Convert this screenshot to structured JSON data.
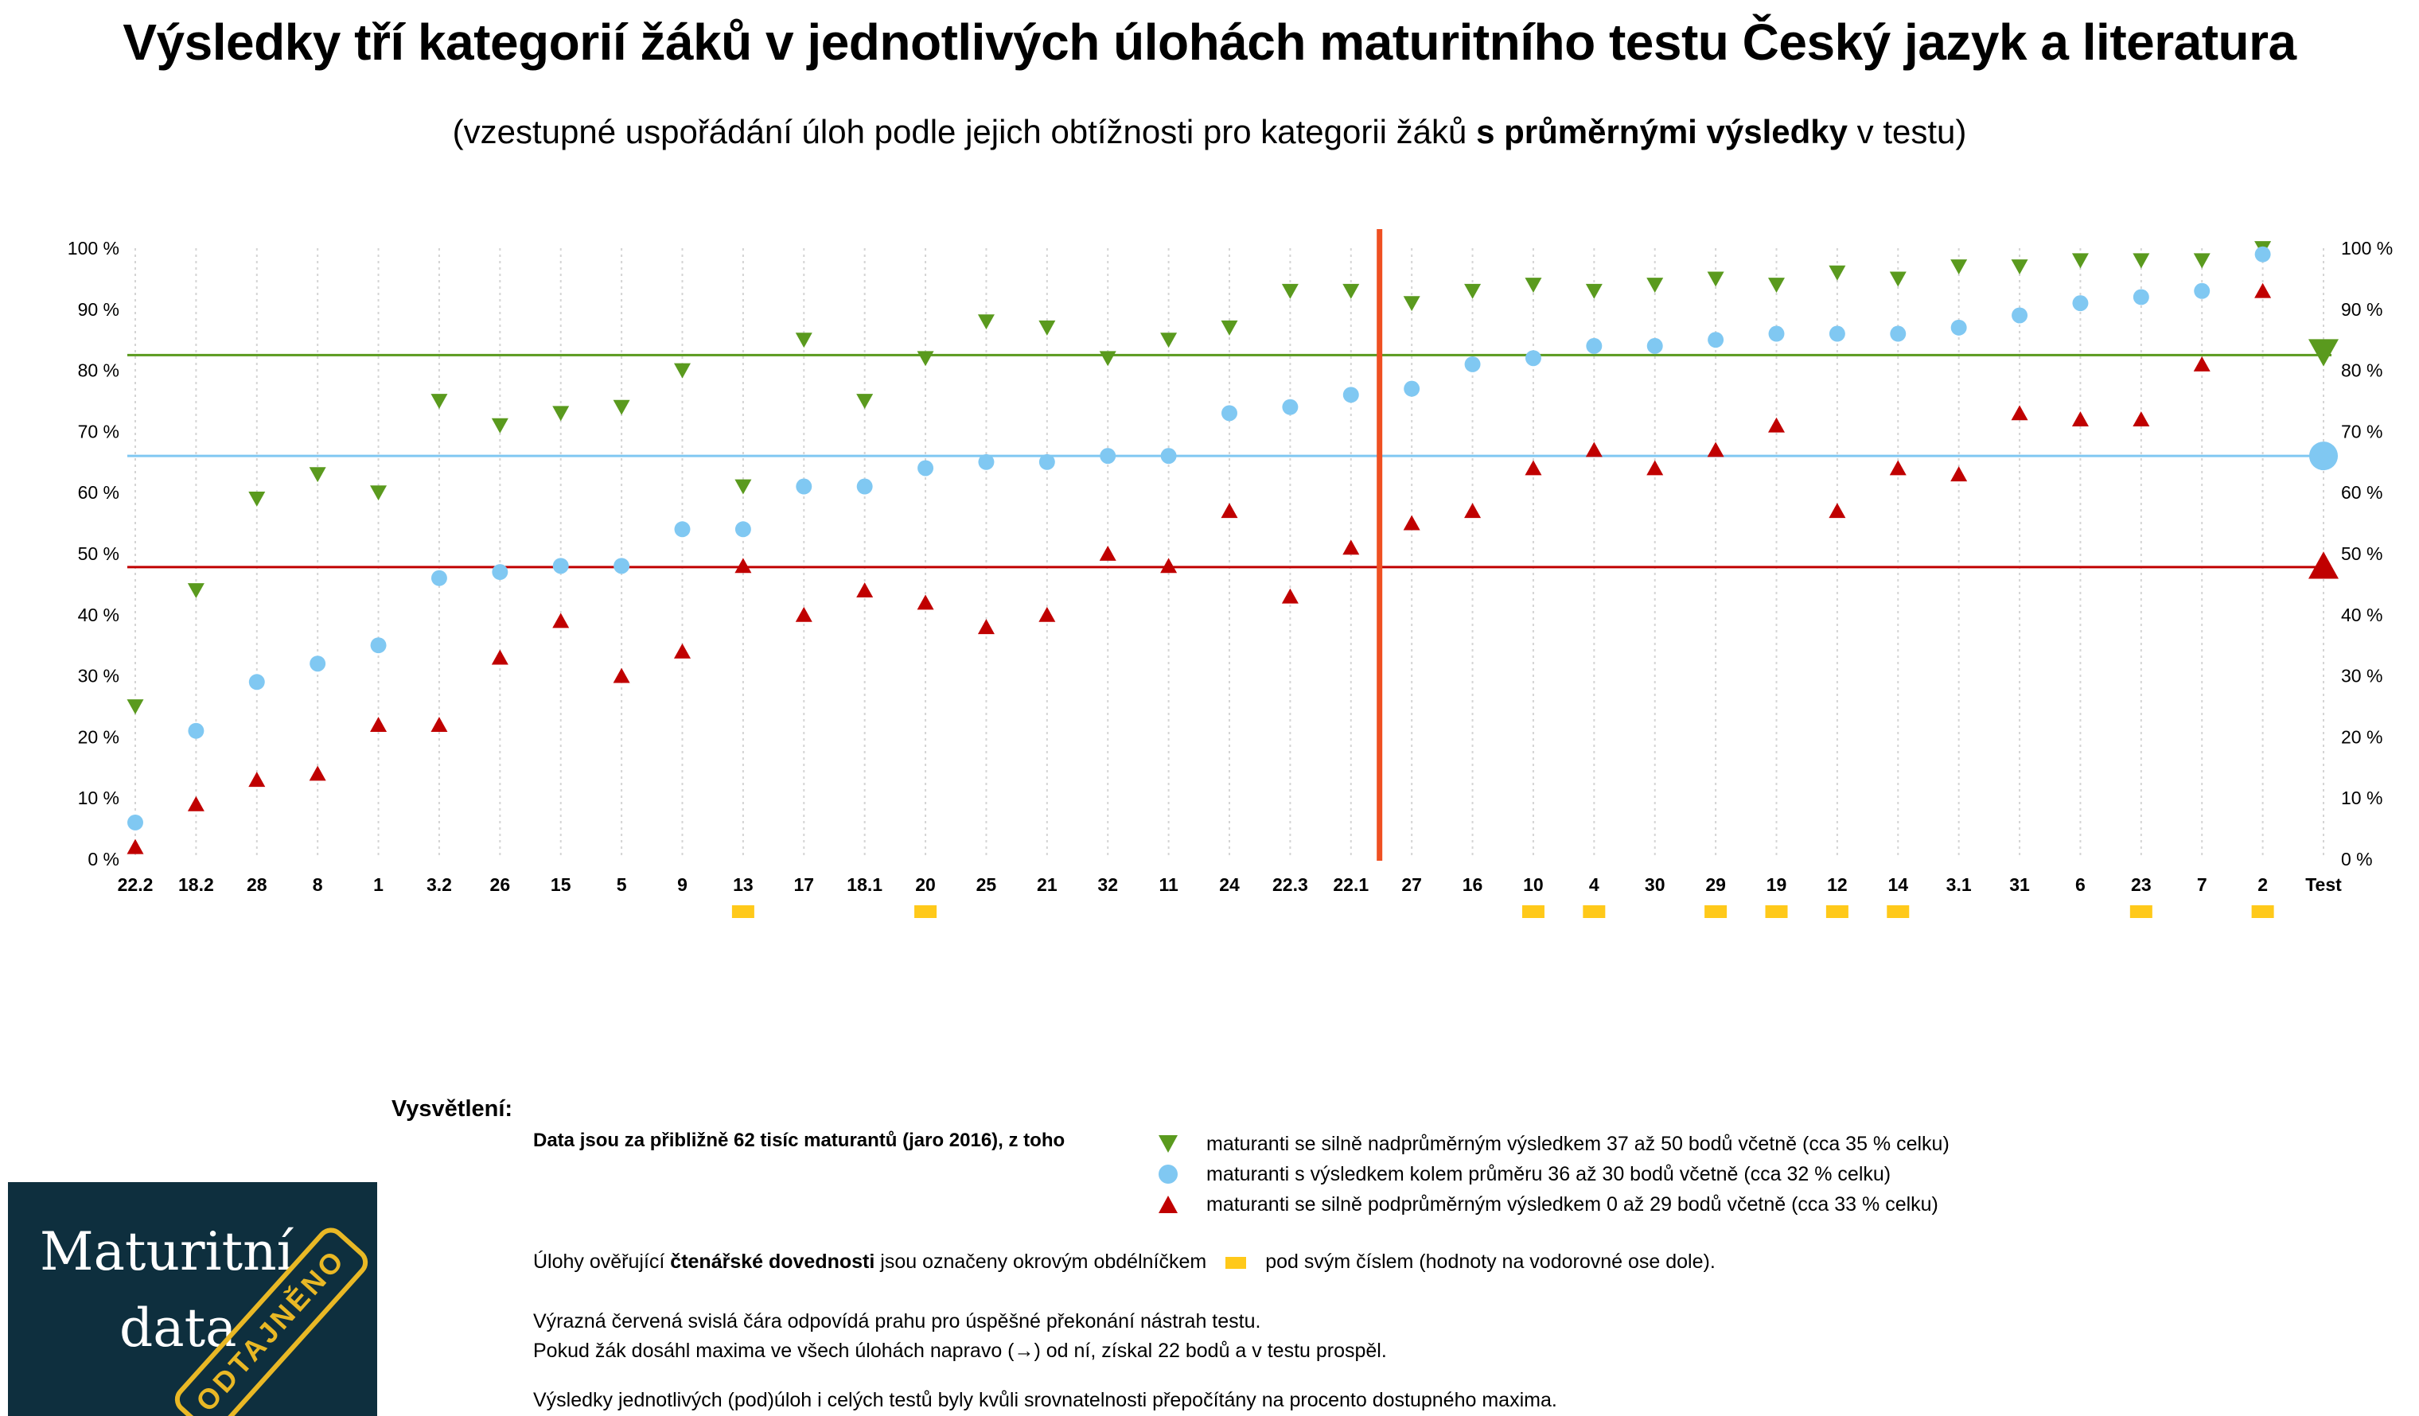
{
  "title": "Výsledky tří kategorií žáků v jednotlivých úlohách maturitního testu Český jazyk a literatura",
  "subtitle": {
    "before": "(vzestupné uspořádání úloh podle jejich obtížnosti pro kategorii žáků ",
    "bold": "s průměrnými výsledky",
    "after": " v testu)"
  },
  "chart_data": {
    "type": "scatter",
    "categories": [
      "22.2",
      "18.2",
      "28",
      "8",
      "1",
      "3.2",
      "26",
      "15",
      "5",
      "9",
      "13",
      "17",
      "18.1",
      "20",
      "25",
      "21",
      "32",
      "11",
      "24",
      "22.3",
      "22.1",
      "27",
      "16",
      "10",
      "4",
      "30",
      "29",
      "19",
      "12",
      "14",
      "3.1",
      "31",
      "6",
      "23",
      "7",
      "2",
      "Test"
    ],
    "y_ticks": [
      "0 %",
      "10 %",
      "20 %",
      "30 %",
      "40 %",
      "50 %",
      "60 %",
      "70 %",
      "80 %",
      "90 %",
      "100 %"
    ],
    "ylim": [
      0,
      100
    ],
    "grid": "vertical dotted",
    "series": [
      {
        "name": "maturanti se silně nadprůměrným výsledkem 37 až 50 bodů včetně (cca 35 % celku)",
        "marker": "triangle-down",
        "color": "#5a9a1e",
        "values": [
          25,
          44,
          59,
          63,
          60,
          75,
          71,
          73,
          74,
          80,
          61,
          85,
          75,
          82,
          88,
          87,
          82,
          85,
          87,
          93,
          93,
          91,
          93,
          94,
          93,
          94,
          95,
          94,
          96,
          95,
          97,
          97,
          98,
          98,
          98,
          100,
          83
        ]
      },
      {
        "name": "maturanti s výsledkem kolem průměru 36 až 30 bodů včetně (cca 32 % celku)",
        "marker": "circle",
        "color": "#80c8f2",
        "values": [
          6,
          21,
          29,
          32,
          35,
          46,
          47,
          48,
          48,
          54,
          54,
          61,
          61,
          64,
          65,
          65,
          66,
          66,
          73,
          74,
          76,
          77,
          81,
          82,
          84,
          84,
          85,
          86,
          86,
          86,
          87,
          89,
          91,
          92,
          93,
          99,
          66
        ]
      },
      {
        "name": "maturanti se silně podprůměrným výsledkem 0 až 29 bodů včetně (cca 33 % celku)",
        "marker": "triangle-up",
        "color": "#c00000",
        "values": [
          2,
          9,
          13,
          14,
          22,
          22,
          33,
          39,
          30,
          34,
          48,
          40,
          44,
          42,
          38,
          40,
          50,
          48,
          57,
          43,
          51,
          55,
          57,
          64,
          67,
          64,
          67,
          71,
          57,
          64,
          63,
          73,
          72,
          72,
          81,
          93,
          48
        ]
      }
    ],
    "reference_lines": [
      {
        "series": 0,
        "value": 82.5,
        "color": "#5a9a1e"
      },
      {
        "series": 1,
        "value": 66,
        "color": "#80c8f2"
      },
      {
        "series": 2,
        "value": 47.8,
        "color": "#c00000"
      }
    ],
    "threshold_after_category": "22.1",
    "threshold_color": "#ef5022",
    "reading_tasks": [
      "13",
      "20",
      "10",
      "4",
      "29",
      "19",
      "12",
      "14",
      "23",
      "2"
    ],
    "reading_marker_color": "#ffc91a"
  },
  "legend": {
    "heading": "Vysvětlení:",
    "intro": "Data jsou za přibližně 62 tisíc maturantů (jaro 2016), z toho",
    "items": [
      "maturanti se silně nadprůměrným výsledkem 37 až 50 bodů včetně (cca 35 % celku)",
      "maturanti s výsledkem kolem průměru 36 až 30 bodů včetně (cca 32 % celku)",
      "maturanti se silně podprůměrným výsledkem 0 až 29 bodů včetně (cca 33 % celku)"
    ],
    "reading_note": {
      "before": "Úlohy ověřující ",
      "bold": "čtenářské dovednosti",
      "middle": " jsou označeny okrovým obdélníčkem",
      "after": "pod svým číslem (hodnoty na vodorovné ose dole)."
    },
    "threshold_note_1": "Výrazná červená svislá čára odpovídá prahu pro úspěšné překonání nástrah testu.",
    "threshold_note_2": "Pokud žák dosáhl maxima ve všech úlohách napravo (→) od ní, získal 22 bodů a v testu prospěl.",
    "final_note": "Výsledky jednotlivých (pod)úloh i celých testů byly kvůli srovnatelnosti přepočítány na procento dostupného maxima."
  },
  "logo": {
    "line1": "Maturitní",
    "line2": "data",
    "stamp": "ODTAJNĚNO"
  }
}
